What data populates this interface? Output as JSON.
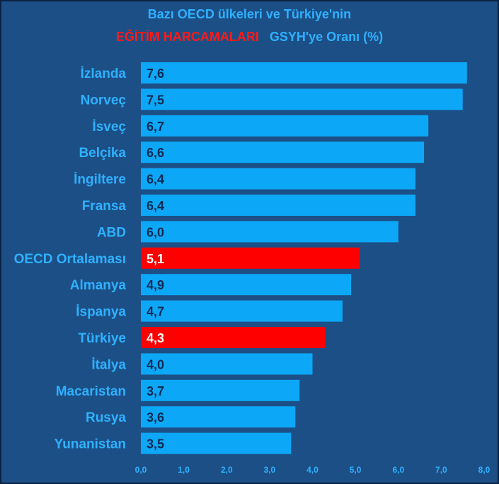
{
  "title": {
    "line1": "Bazı OECD ülkeleri ve Türkiye'nin",
    "highlight": "EĞİTİM HARCAMALARI",
    "rest": "GSYH'ye Oranı (%)"
  },
  "colors": {
    "background": "#1c4f86",
    "bar": "#0ca8f7",
    "bar_highlight": "#ff0000",
    "category_text": "#2fb1ff",
    "value_text": "#0a2a52",
    "value_text_highlight": "#ffffff"
  },
  "chart_data": {
    "type": "bar",
    "orientation": "horizontal",
    "categories": [
      "İzlanda",
      "Norveç",
      "İsveç",
      "Belçika",
      "İngiltere",
      "Fransa",
      "ABD",
      "OECD Ortalaması",
      "Almanya",
      "İspanya",
      "Türkiye",
      "İtalya",
      "Macaristan",
      "Rusya",
      "Yunanistan"
    ],
    "values": [
      7.6,
      7.5,
      6.7,
      6.6,
      6.4,
      6.4,
      6.0,
      5.1,
      4.9,
      4.7,
      4.3,
      4.0,
      3.7,
      3.6,
      3.5
    ],
    "value_labels": [
      "7,6",
      "7,5",
      "6,7",
      "6,6",
      "6,4",
      "6,4",
      "6,0",
      "5,1",
      "4,9",
      "4,7",
      "4,3",
      "4,0",
      "3,7",
      "3,6",
      "3,5"
    ],
    "highlighted": [
      "OECD Ortalaması",
      "Türkiye"
    ],
    "xlim": [
      0,
      8
    ],
    "ticks": [
      0,
      1,
      2,
      3,
      4,
      5,
      6,
      7,
      8
    ],
    "tick_labels": [
      "0,0",
      "1,0",
      "2,0",
      "3,0",
      "4,0",
      "5,0",
      "6,0",
      "7,0",
      "8,0"
    ],
    "grid": false,
    "legend": false
  }
}
